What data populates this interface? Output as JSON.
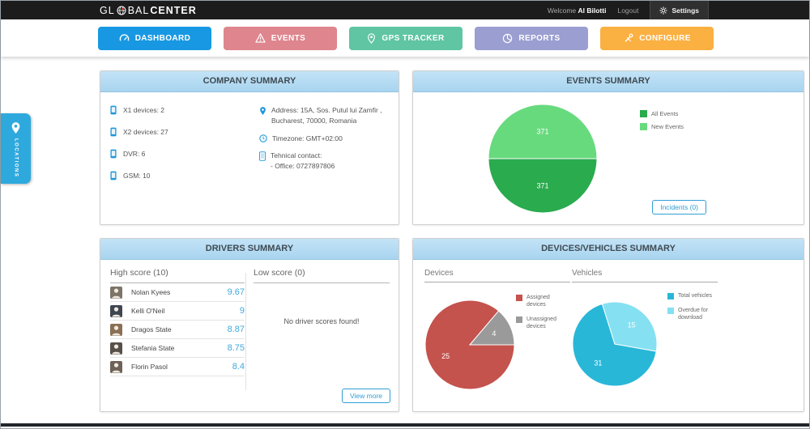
{
  "topbar": {
    "logo": {
      "part1": "GL",
      "part2": "BAL",
      "part3": "CENTER"
    },
    "welcome": "Welcome",
    "user": "Al Bilotti",
    "logout": "Logout",
    "settings": "Settings"
  },
  "nav": {
    "items": [
      {
        "label": "DASHBOARD",
        "color": "#1898e2",
        "active": true
      },
      {
        "label": "EVENTS",
        "color": "#de858d",
        "active": false
      },
      {
        "label": "GPS TRACKER",
        "color": "#5fc5a3",
        "active": false
      },
      {
        "label": "REPORTS",
        "color": "#9a9ed0",
        "active": false
      },
      {
        "label": "CONFIGURE",
        "color": "#fbb042",
        "active": false
      }
    ]
  },
  "locations_tab": {
    "label": "LOCATIONS"
  },
  "company_summary": {
    "title": "COMPANY SUMMARY",
    "devices": [
      {
        "label": "X1 devices: 2"
      },
      {
        "label": "X2 devices: 27"
      },
      {
        "label": "DVR: 6"
      },
      {
        "label": "GSM: 10"
      }
    ],
    "address_line1": "Address: 15A, Sos. Putul lui Zamfir ,",
    "address_line2": "Bucharest, 70000, Romania",
    "timezone": "Timezone: GMT+02:00",
    "contact_label": "Tehnical contact:",
    "contact_value": "- Office: 0727897806"
  },
  "events_summary": {
    "title": "EVENTS SUMMARY",
    "incidents_button": "Incidents (0)"
  },
  "drivers_summary": {
    "title": "DRIVERS SUMMARY",
    "high_header": "High score (10)",
    "low_header": "Low score (0)",
    "high_scores": [
      {
        "name": "Nolan Kyees",
        "score": "9.67"
      },
      {
        "name": "Kelli O'Neil",
        "score": "9"
      },
      {
        "name": "Dragos State",
        "score": "8.87"
      },
      {
        "name": "Stefania State",
        "score": "8.75"
      },
      {
        "name": "Florin Pasol",
        "score": "8.4"
      }
    ],
    "no_low_scores": "No driver scores found!",
    "view_more_button": "View more"
  },
  "devices_vehicles_summary": {
    "title": "DEVICES/VEHICLES SUMMARY",
    "devices_header": "Devices",
    "vehicles_header": "Vehicles"
  },
  "chart_data": [
    {
      "type": "pie",
      "title": "Events Summary",
      "labels": [
        "All Events",
        "New Events"
      ],
      "values": [
        371,
        371
      ],
      "colors": [
        "#2aab4e",
        "#68da7e"
      ],
      "start_angle": 90,
      "label_r": 0.5,
      "legend_position": "right"
    },
    {
      "type": "pie",
      "title": "Devices",
      "labels": [
        "Assigned devices",
        "Unassigned devices"
      ],
      "values": [
        25,
        4
      ],
      "colors": [
        "#c4524d",
        "#9a9a9a"
      ],
      "start_angle": 90,
      "label_r": 0.6,
      "legend_position": "right"
    },
    {
      "type": "pie",
      "title": "Vehicles",
      "labels": [
        "Total vehicles",
        "Overdue for download"
      ],
      "values": [
        31,
        15
      ],
      "colors": [
        "#29b7d8",
        "#85e0f2"
      ],
      "start_angle": 100,
      "label_r": 0.6,
      "legend_position": "right"
    }
  ]
}
